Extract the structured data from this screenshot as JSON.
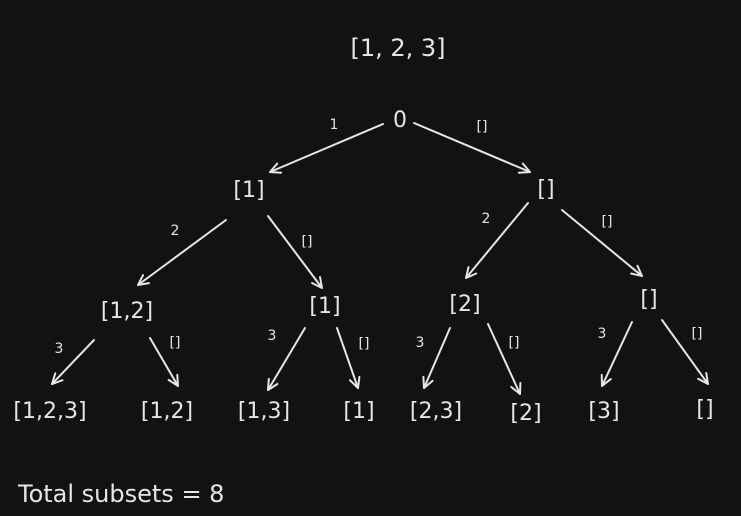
{
  "title": "[1, 2, 3]",
  "total": "Total subsets = 8",
  "nodes": {
    "root": "0",
    "l1_left": "[1]",
    "l1_right": "[]",
    "l2_a": "[1,2]",
    "l2_b": "[1]",
    "l2_c": "[2]",
    "l2_d": "[]",
    "leaf_1": "[1,2,3]",
    "leaf_2": "[1,2]",
    "leaf_3": "[1,3]",
    "leaf_4": "[1]",
    "leaf_5": "[2,3]",
    "leaf_6": "[2]",
    "leaf_7": "[3]",
    "leaf_8": "[]"
  },
  "edge_labels": {
    "root_left": "1",
    "root_right": "[]",
    "l1_left_left": "2",
    "l1_left_right": "[]",
    "l1_right_left": "2",
    "l1_right_right": "[]",
    "a_left": "3",
    "a_right": "[]",
    "b_left": "3",
    "b_right": "[]",
    "c_left": "3",
    "c_right": "[]",
    "d_left": "3",
    "d_right": "[]"
  }
}
